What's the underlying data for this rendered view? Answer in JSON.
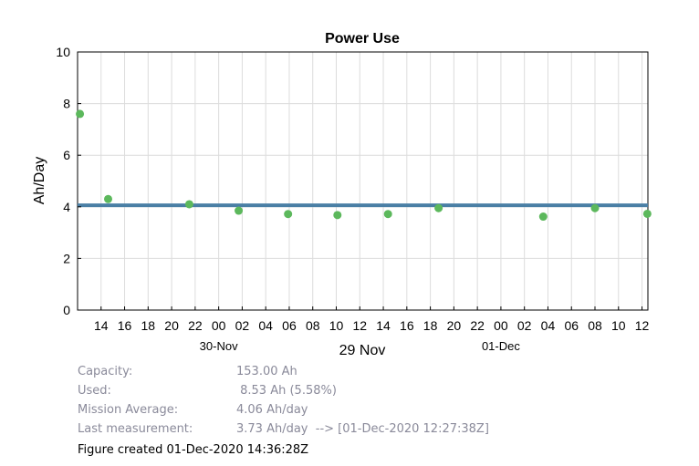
{
  "chart_data": {
    "type": "scatter",
    "title": "Power Use",
    "ylabel": "Ah/Day",
    "xlabel": "29 Nov",
    "ylim": [
      0,
      10
    ],
    "yticks": [
      0,
      2,
      4,
      6,
      8,
      10
    ],
    "x_unit": "hours since 29-Nov 00:00",
    "xlim": [
      12,
      60.5
    ],
    "xticks": [
      {
        "x": 14,
        "label": "14"
      },
      {
        "x": 16,
        "label": "16"
      },
      {
        "x": 18,
        "label": "18"
      },
      {
        "x": 20,
        "label": "20"
      },
      {
        "x": 22,
        "label": "22"
      },
      {
        "x": 24,
        "label": "00"
      },
      {
        "x": 26,
        "label": "02"
      },
      {
        "x": 28,
        "label": "04"
      },
      {
        "x": 30,
        "label": "06"
      },
      {
        "x": 32,
        "label": "08"
      },
      {
        "x": 34,
        "label": "10"
      },
      {
        "x": 36,
        "label": "12"
      },
      {
        "x": 38,
        "label": "14"
      },
      {
        "x": 40,
        "label": "16"
      },
      {
        "x": 42,
        "label": "18"
      },
      {
        "x": 44,
        "label": "20"
      },
      {
        "x": 46,
        "label": "22"
      },
      {
        "x": 48,
        "label": "00"
      },
      {
        "x": 50,
        "label": "02"
      },
      {
        "x": 52,
        "label": "04"
      },
      {
        "x": 54,
        "label": "06"
      },
      {
        "x": 56,
        "label": "08"
      },
      {
        "x": 58,
        "label": "10"
      },
      {
        "x": 60,
        "label": "12"
      }
    ],
    "date_labels": [
      {
        "x": 24,
        "label": "30-Nov"
      },
      {
        "x": 48,
        "label": "01-Dec"
      }
    ],
    "series": [
      {
        "color": "#5cb85c",
        "points": [
          {
            "x": 12.2,
            "y": 7.6
          },
          {
            "x": 14.6,
            "y": 4.3
          },
          {
            "x": 21.5,
            "y": 4.1
          },
          {
            "x": 25.7,
            "y": 3.85
          },
          {
            "x": 29.9,
            "y": 3.72
          },
          {
            "x": 34.1,
            "y": 3.68
          },
          {
            "x": 38.4,
            "y": 3.72
          },
          {
            "x": 42.7,
            "y": 3.95
          },
          {
            "x": 51.6,
            "y": 3.62
          },
          {
            "x": 56.0,
            "y": 3.95
          },
          {
            "x": 60.45,
            "y": 3.73
          }
        ]
      }
    ],
    "reference_line": {
      "y": 4.06,
      "color": "#4a7fa5"
    },
    "grid": true
  },
  "info": {
    "rows": [
      {
        "key": "Capacity:",
        "value": "153.00 Ah"
      },
      {
        "key": "Used:",
        "value": " 8.53 Ah (5.58%)"
      },
      {
        "key": "Mission Average:",
        "value": "4.06 Ah/day"
      },
      {
        "key": "Last measurement:",
        "value": "3.73 Ah/day  --> [01-Dec-2020 12:27:38Z]"
      }
    ],
    "created": "Figure created 01-Dec-2020 14:36:28Z"
  }
}
